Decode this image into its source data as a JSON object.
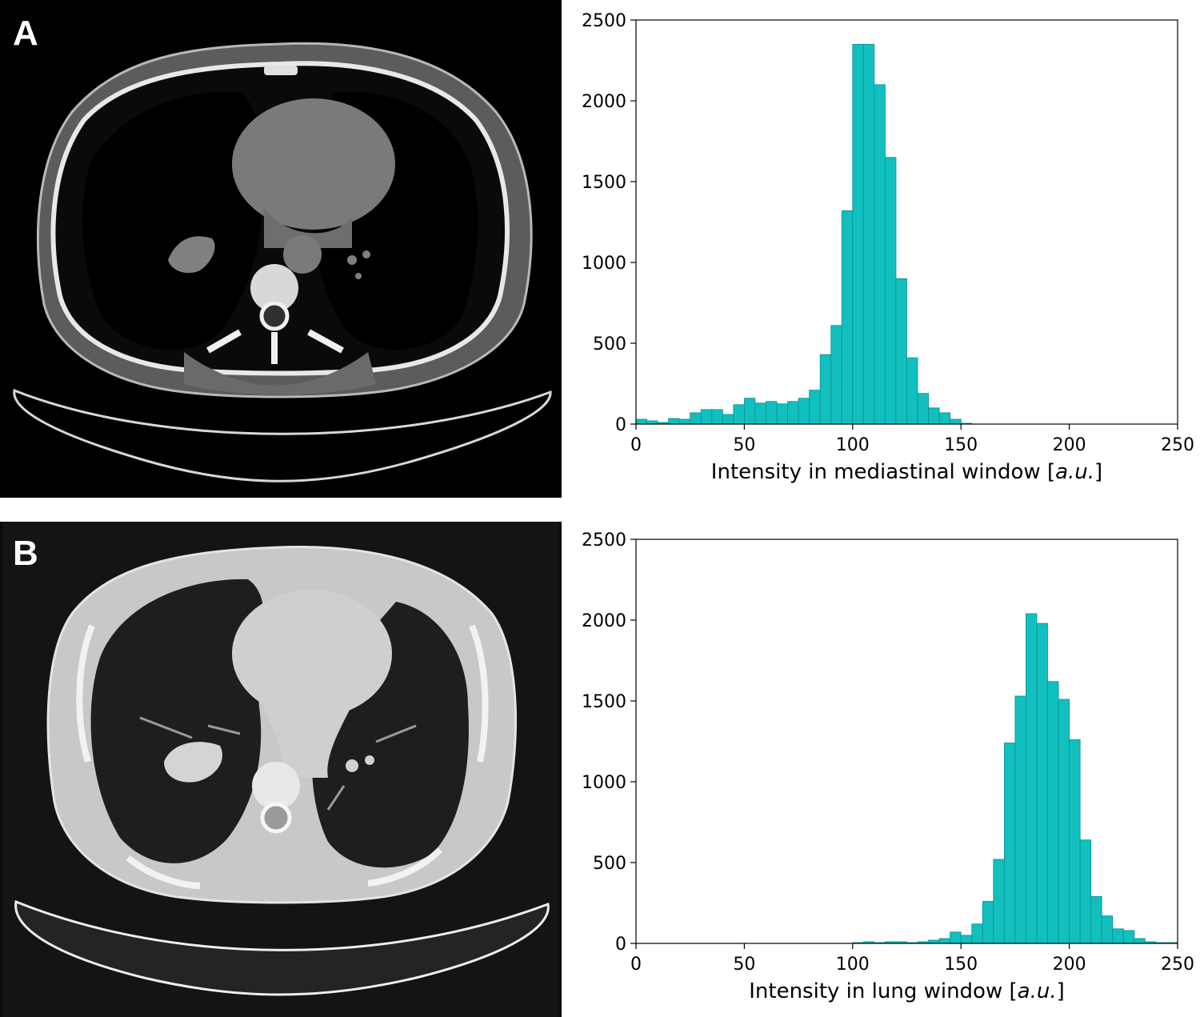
{
  "panels": {
    "a": {
      "letter": "A"
    },
    "b": {
      "letter": "B"
    }
  },
  "chart_data": [
    {
      "type": "bar",
      "title": "",
      "xlabel_main": "Intensity in mediastinal window [",
      "xlabel_italic": "a.u.",
      "xlabel_close": "]",
      "ylabel": "",
      "xlim": [
        0,
        250
      ],
      "ylim": [
        0,
        2500
      ],
      "xticks": [
        "0",
        "50",
        "100",
        "150",
        "200",
        "250"
      ],
      "yticks": [
        "0",
        "500",
        "1000",
        "1500",
        "2000",
        "2500"
      ],
      "bar_color": "#12bfbf",
      "bin_width": 5,
      "bin_starts": [
        0,
        5,
        10,
        15,
        20,
        25,
        30,
        35,
        40,
        45,
        50,
        55,
        60,
        65,
        70,
        75,
        80,
        85,
        90,
        95,
        100,
        105,
        110,
        115,
        120,
        125,
        130,
        135,
        140,
        145,
        150
      ],
      "values": [
        30,
        20,
        10,
        35,
        30,
        70,
        90,
        90,
        60,
        120,
        160,
        130,
        140,
        125,
        140,
        160,
        210,
        430,
        610,
        1320,
        2350,
        2350,
        2100,
        1650,
        900,
        410,
        190,
        100,
        70,
        30,
        5
      ]
    },
    {
      "type": "bar",
      "title": "",
      "xlabel_main": "Intensity in lung window [",
      "xlabel_italic": "a.u.",
      "xlabel_close": "]",
      "ylabel": "",
      "xlim": [
        0,
        250
      ],
      "ylim": [
        0,
        2500
      ],
      "xticks": [
        "0",
        "50",
        "100",
        "150",
        "200",
        "250"
      ],
      "yticks": [
        "0",
        "500",
        "1000",
        "1500",
        "2000",
        "2500"
      ],
      "bar_color": "#12bfbf",
      "bin_width": 5,
      "bin_starts": [
        100,
        105,
        110,
        115,
        120,
        125,
        130,
        135,
        140,
        145,
        150,
        155,
        160,
        165,
        170,
        175,
        180,
        185,
        190,
        195,
        200,
        205,
        210,
        215,
        220,
        225,
        230,
        235,
        240,
        245
      ],
      "values": [
        5,
        10,
        5,
        10,
        10,
        5,
        10,
        20,
        30,
        70,
        50,
        120,
        260,
        520,
        1240,
        1530,
        2040,
        1980,
        1620,
        1510,
        1260,
        640,
        290,
        170,
        90,
        80,
        30,
        10,
        5,
        5
      ]
    }
  ]
}
